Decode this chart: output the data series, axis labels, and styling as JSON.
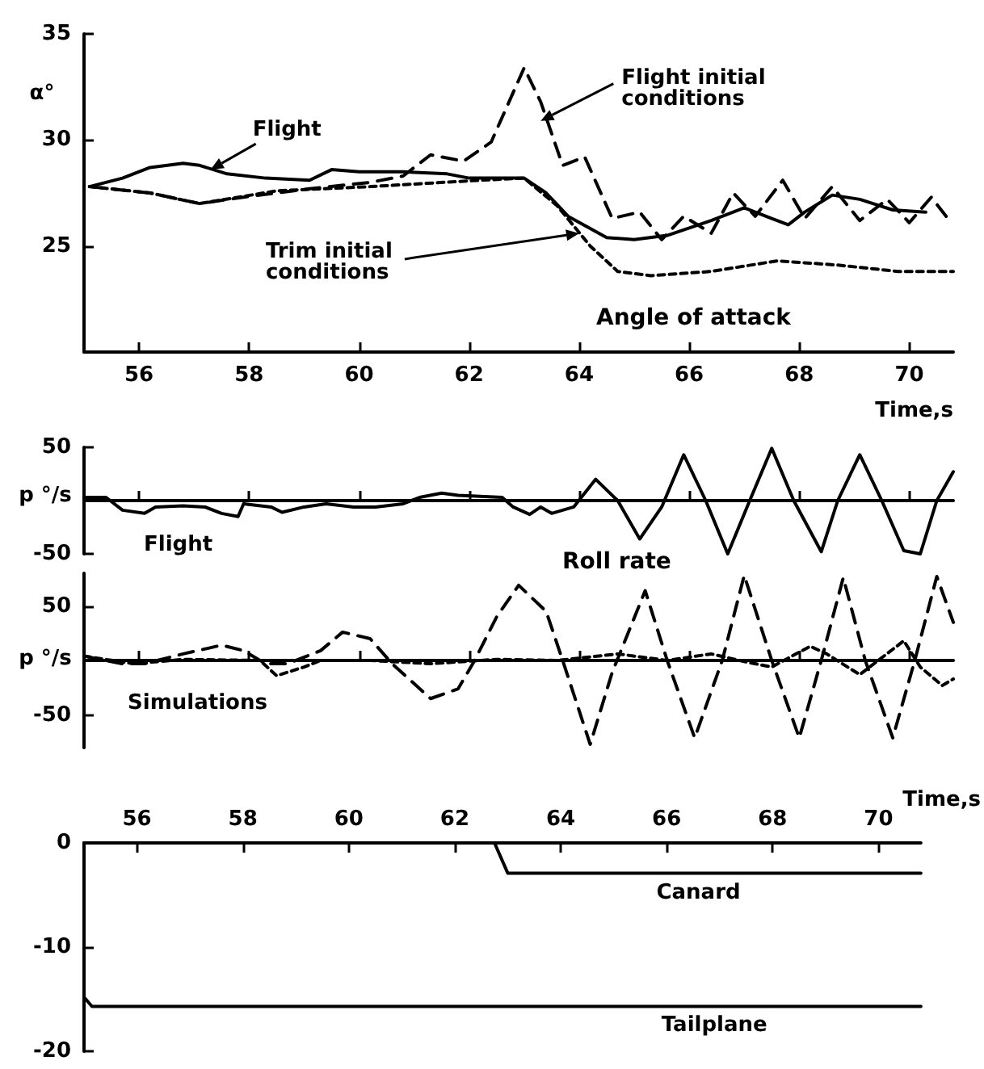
{
  "chart_data": [
    {
      "type": "line",
      "title": "Angle of attack",
      "xlabel": "Time,s",
      "ylabel": "α°",
      "xlim": [
        55,
        70.8
      ],
      "xticks": [
        56,
        58,
        60,
        62,
        64,
        66,
        68,
        70
      ],
      "ylim": [
        20,
        35
      ],
      "yticks": [
        25,
        30,
        35
      ],
      "marker": "none",
      "grid": false,
      "series": [
        {
          "color": "#000000",
          "line_style": "solid",
          "x": [
            55.1,
            55.7,
            56.2,
            56.8,
            57.1,
            57.6,
            58.3,
            59.1,
            59.5,
            60.0,
            60.8,
            61.6,
            62.0,
            62.5,
            63.0,
            63.4,
            63.8,
            64.5,
            65.0,
            65.6,
            66.4,
            67.0,
            67.5,
            67.8,
            68.1,
            68.6,
            69.1,
            69.7,
            70.3
          ],
          "values": [
            27.8,
            28.2,
            28.7,
            28.9,
            28.8,
            28.4,
            28.2,
            28.1,
            28.6,
            28.5,
            28.5,
            28.4,
            28.2,
            28.2,
            28.2,
            27.5,
            26.4,
            25.4,
            25.3,
            25.5,
            26.2,
            26.8,
            26.3,
            26.0,
            26.6,
            27.4,
            27.2,
            26.7,
            26.6
          ]
        },
        {
          "color": "#000000",
          "line_style": "dashed",
          "x": [
            55.1,
            56.2,
            57.1,
            57.9,
            59.1,
            60.2,
            60.8,
            61.3,
            61.9,
            62.4,
            63.0,
            63.3,
            63.7,
            64.1,
            64.6,
            65.1,
            65.5,
            65.9,
            66.4,
            66.8,
            67.2,
            67.7,
            68.1,
            68.6,
            69.1,
            69.6,
            70.0,
            70.4,
            70.7
          ],
          "values": [
            27.8,
            27.5,
            27.0,
            27.3,
            27.7,
            28.0,
            28.3,
            29.3,
            29.0,
            29.9,
            33.4,
            31.8,
            28.8,
            29.2,
            26.3,
            26.6,
            25.3,
            26.4,
            25.6,
            27.5,
            26.4,
            28.1,
            26.3,
            27.8,
            26.2,
            27.2,
            26.1,
            27.3,
            26.3
          ]
        },
        {
          "color": "#000000",
          "line_style": "dotted",
          "x": [
            55.1,
            56.2,
            57.1,
            58.5,
            60.2,
            62.2,
            63.0,
            63.6,
            64.2,
            64.7,
            65.3,
            66.4,
            67.6,
            68.7,
            69.8,
            70.8
          ],
          "values": [
            27.8,
            27.5,
            27.0,
            27.6,
            27.8,
            28.1,
            28.2,
            26.9,
            25.0,
            23.8,
            23.6,
            23.8,
            24.3,
            24.1,
            23.8,
            23.8
          ]
        }
      ],
      "annotations": [
        {
          "text": "Flight",
          "x": 57.3,
          "y": 28.6
        },
        {
          "text": "Flight initial conditions",
          "x": 63.3,
          "y": 30.9
        },
        {
          "text": "Trim initial conditions",
          "x": 64.0,
          "y": 25.6
        }
      ]
    },
    {
      "type": "line",
      "title": "Roll rate",
      "ylabel": "p °/s",
      "xlim": [
        55,
        70.8
      ],
      "xticks": [
        56,
        58,
        60,
        62,
        64,
        66,
        68,
        70
      ],
      "ylim": [
        -50,
        50
      ],
      "yticks": [
        -50,
        50
      ],
      "tick_labels": "y",
      "marker": "none",
      "grid": false,
      "series": [
        {
          "color": "#000000",
          "line_style": "solid",
          "x": [
            55.0,
            55.4,
            55.7,
            56.1,
            56.3,
            56.8,
            57.2,
            57.5,
            57.8,
            57.9,
            58.4,
            58.6,
            59.0,
            59.4,
            59.9,
            60.3,
            60.8,
            61.1,
            61.5,
            61.8,
            62.2,
            62.6,
            62.8,
            63.1,
            63.3,
            63.5,
            63.9,
            64.3,
            64.7,
            65.1,
            65.5,
            65.9,
            66.3,
            66.7,
            67.1,
            67.5,
            67.9,
            68.4,
            68.7,
            69.1,
            69.5,
            69.9,
            70.2,
            70.5,
            70.8
          ],
          "values": [
            3,
            3,
            -9,
            -12,
            -6,
            -5,
            -6,
            -12,
            -15,
            -3,
            -6,
            -11,
            -6,
            -3,
            -6,
            -6,
            -3,
            3,
            7,
            5,
            4,
            3,
            -6,
            -13,
            -6,
            -12,
            -6,
            20,
            0,
            -36,
            -6,
            43,
            0,
            -50,
            0,
            49,
            0,
            -48,
            0,
            43,
            0,
            -47,
            -50,
            0,
            27
          ]
        }
      ],
      "annotations": [
        "Flight"
      ]
    },
    {
      "type": "line",
      "ylabel": "p °/s",
      "xlim": [
        55,
        70.8
      ],
      "xticks": [
        56,
        58,
        60,
        62,
        64,
        66,
        68,
        70
      ],
      "ylim": [
        -80,
        80
      ],
      "yticks": [
        -50,
        50
      ],
      "tick_labels": "y",
      "marker": "none",
      "grid": false,
      "series": [
        {
          "color": "#000000",
          "line_style": "dashed",
          "x": [
            55.0,
            55.7,
            56.1,
            56.8,
            57.5,
            57.9,
            58.3,
            58.7,
            59.3,
            59.7,
            60.2,
            60.6,
            61.3,
            61.8,
            62.1,
            62.5,
            62.9,
            63.4,
            63.7,
            64.2,
            64.6,
            65.2,
            65.6,
            66.1,
            66.6,
            67.0,
            67.5,
            68.0,
            68.4,
            68.8,
            69.2,
            69.7,
            70.1,
            70.5,
            70.8
          ],
          "values": [
            4,
            -3,
            -3,
            6,
            14,
            9,
            -3,
            -3,
            9,
            26,
            20,
            -3,
            -35,
            -26,
            0,
            40,
            69,
            45,
            0,
            -77,
            -11,
            64,
            0,
            -71,
            0,
            78,
            0,
            -71,
            0,
            76,
            0,
            -71,
            0,
            77,
            35
          ]
        },
        {
          "color": "#000000",
          "line_style": "dotted",
          "x": [
            55.0,
            55.9,
            56.8,
            58.2,
            58.5,
            59.0,
            59.3,
            60.2,
            61.3,
            62.5,
            63.6,
            64.7,
            65.6,
            66.4,
            67.0,
            67.5,
            68.2,
            68.5,
            69.1,
            69.9,
            70.2,
            70.6,
            70.8
          ],
          "values": [
            4,
            -3,
            1,
            0,
            -14,
            -6,
            0,
            0,
            -3,
            1,
            0,
            6,
            0,
            6,
            -1,
            -6,
            13,
            6,
            -13,
            18,
            -6,
            -23,
            -17
          ]
        }
      ],
      "annotations": [
        "Simulations"
      ]
    },
    {
      "type": "line",
      "xlabel": "Time,s",
      "xlim": [
        55,
        70.8
      ],
      "xticks": [
        56,
        58,
        60,
        62,
        64,
        66,
        68,
        70
      ],
      "ylim": [
        -20,
        0
      ],
      "yticks": [
        -20,
        -10,
        0
      ],
      "marker": "none",
      "grid": false,
      "series": [
        {
          "color": "#000000",
          "line_style": "solid",
          "x": [
            55,
            62.75,
            63.0,
            70.8
          ],
          "values": [
            0,
            0,
            -2.9,
            -2.9
          ]
        },
        {
          "color": "#000000",
          "line_style": "solid",
          "x": [
            55,
            55.15,
            70.8
          ],
          "values": [
            -14.8,
            -15.7,
            -15.7
          ]
        }
      ],
      "annotations": [
        {
          "text": "Canard",
          "x": 66.6,
          "y": -2.9
        },
        {
          "text": "Tailplane",
          "x": 66.9,
          "y": -15.7
        }
      ]
    }
  ]
}
